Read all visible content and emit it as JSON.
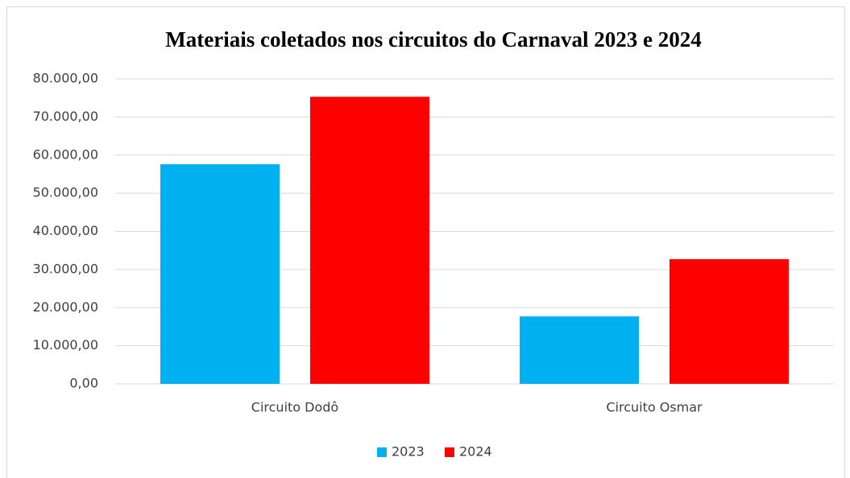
{
  "chart_data": {
    "type": "bar",
    "title": "Materiais coletados nos circuitos do Carnaval 2023 e 2024",
    "categories": [
      "Circuito Dodô",
      "Circuito Osmar"
    ],
    "series": [
      {
        "name": "2023",
        "color": "#00b0f0",
        "values": [
          57600,
          17700
        ]
      },
      {
        "name": "2024",
        "color": "#ff0000",
        "values": [
          75300,
          32700
        ]
      }
    ],
    "ylim": [
      0,
      80000
    ],
    "yticks": [
      {
        "value": 0,
        "label": "0,00"
      },
      {
        "value": 10000,
        "label": "10.000,00"
      },
      {
        "value": 20000,
        "label": "20.000,00"
      },
      {
        "value": 30000,
        "label": "30.000,00"
      },
      {
        "value": 40000,
        "label": "40.000,00"
      },
      {
        "value": 50000,
        "label": "50.000,00"
      },
      {
        "value": 60000,
        "label": "60.000,00"
      },
      {
        "value": 70000,
        "label": "70.000,00"
      },
      {
        "value": 80000,
        "label": "80.000,00"
      }
    ],
    "grid": true,
    "legend": "bottom"
  }
}
